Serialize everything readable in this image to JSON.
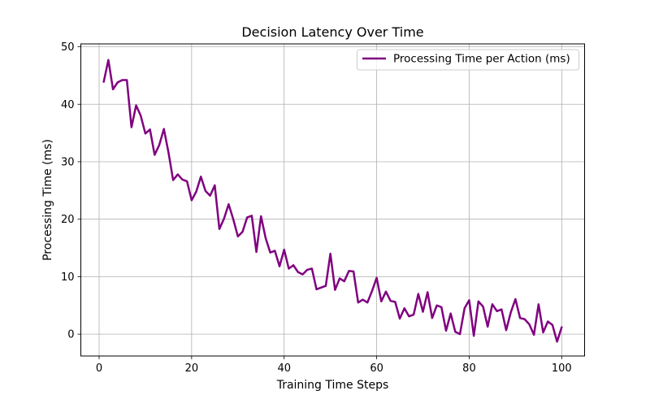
{
  "chart_data": {
    "type": "line",
    "title": "Decision Latency Over Time",
    "xlabel": "Training Time Steps",
    "ylabel": "Processing Time (ms)",
    "xlim": [
      -3.95,
      104.95
    ],
    "ylim": [
      -3.8,
      50.5
    ],
    "xticks": [
      0,
      20,
      40,
      60,
      80,
      100
    ],
    "yticks": [
      0,
      10,
      20,
      30,
      40,
      50
    ],
    "grid": true,
    "legend_position": "top-right",
    "series": [
      {
        "name": "Processing Time per Action (ms)",
        "color": "#800080",
        "x": [
          1,
          2,
          3,
          4,
          5,
          6,
          7,
          8,
          9,
          10,
          11,
          12,
          13,
          14,
          15,
          16,
          17,
          18,
          19,
          20,
          21,
          22,
          23,
          24,
          25,
          26,
          27,
          28,
          29,
          30,
          31,
          32,
          33,
          34,
          35,
          36,
          37,
          38,
          39,
          40,
          41,
          42,
          43,
          44,
          45,
          46,
          47,
          48,
          49,
          50,
          51,
          52,
          53,
          54,
          55,
          56,
          57,
          58,
          59,
          60,
          61,
          62,
          63,
          64,
          65,
          66,
          67,
          68,
          69,
          70,
          71,
          72,
          73,
          74,
          75,
          76,
          77,
          78,
          79,
          80,
          81,
          82,
          83,
          84,
          85,
          86,
          87,
          88,
          89,
          90,
          91,
          92,
          93,
          94,
          95,
          96,
          97,
          98,
          99,
          100
        ],
        "values": [
          43.9,
          47.7,
          42.6,
          43.8,
          44.2,
          44.2,
          36.0,
          39.8,
          38.0,
          34.9,
          35.6,
          31.2,
          32.9,
          35.7,
          31.6,
          26.8,
          27.8,
          26.9,
          26.6,
          23.3,
          24.8,
          27.4,
          24.9,
          24.1,
          25.9,
          18.3,
          20.1,
          22.6,
          20.0,
          17.0,
          17.8,
          20.3,
          20.6,
          14.3,
          20.5,
          16.7,
          14.2,
          14.5,
          11.8,
          14.7,
          11.4,
          12.0,
          10.8,
          10.4,
          11.2,
          11.4,
          7.8,
          8.1,
          8.4,
          14.0,
          7.7,
          9.7,
          9.2,
          11.0,
          10.9,
          5.5,
          6.0,
          5.5,
          7.5,
          9.8,
          5.7,
          7.4,
          5.8,
          5.6,
          2.7,
          4.5,
          3.1,
          3.4,
          7.0,
          3.9,
          7.3,
          2.8,
          5.0,
          4.7,
          0.6,
          3.6,
          0.4,
          0.0,
          4.5,
          5.9,
          -0.3,
          5.7,
          4.8,
          1.3,
          5.2,
          4.0,
          4.3,
          0.7,
          3.8,
          6.1,
          2.8,
          2.6,
          1.7,
          -0.1,
          5.2,
          0.3,
          2.2,
          1.6,
          -1.3,
          1.2
        ]
      }
    ]
  }
}
